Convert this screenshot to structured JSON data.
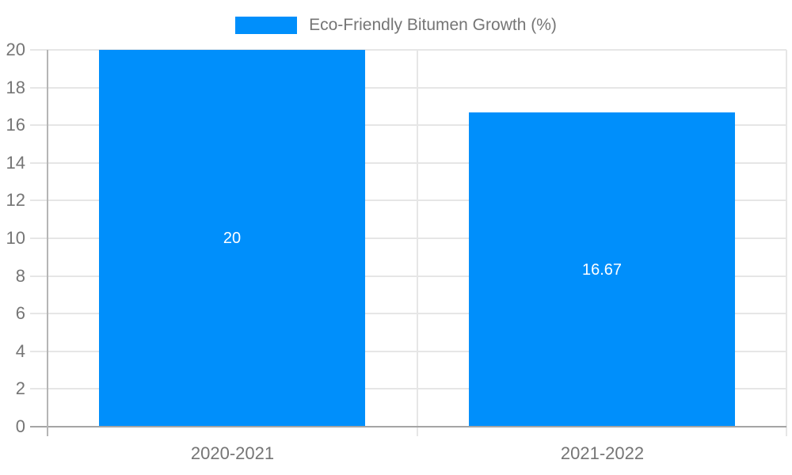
{
  "chart_data": {
    "type": "bar",
    "title": "",
    "legend": {
      "label": "Eco-Friendly Bitumen Growth (%)",
      "position": "top"
    },
    "categories": [
      "2020-2021",
      "2021-2022"
    ],
    "series": [
      {
        "name": "Eco-Friendly Bitumen Growth (%)",
        "values": [
          20,
          16.67
        ],
        "data_labels": [
          "20",
          "16.67"
        ],
        "color": "#008FFB"
      }
    ],
    "xlabel": "",
    "ylabel": "",
    "ylim": [
      0,
      20
    ],
    "yticks": [
      0,
      2,
      4,
      6,
      8,
      10,
      12,
      14,
      16,
      18,
      20
    ],
    "grid": true,
    "data_label_color": "#ffffff",
    "axis_text_color": "#757575"
  }
}
